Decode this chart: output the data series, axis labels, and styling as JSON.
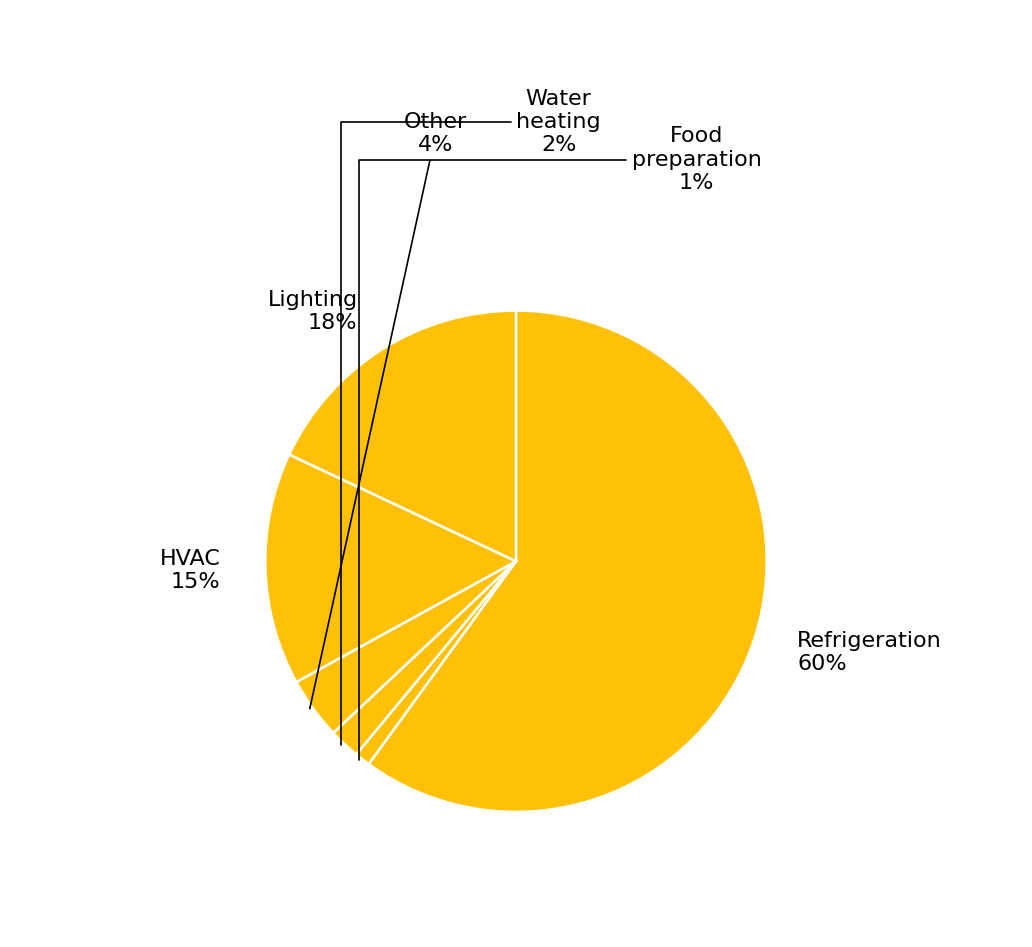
{
  "slices": [
    {
      "label": "Refrigeration\n60%",
      "value": 60
    },
    {
      "label": "Food\npreparation\n1%",
      "value": 1
    },
    {
      "label": "Water\nheating\n2%",
      "value": 2
    },
    {
      "label": "Other\n4%",
      "value": 4
    },
    {
      "label": "HVAC\n15%",
      "value": 15
    },
    {
      "label": "Lighting\n18%",
      "value": 18
    }
  ],
  "pie_color": "#FFC107",
  "wedge_linecolor": "white",
  "wedge_linewidth": 1.8,
  "background_color": "#ffffff",
  "label_fontsize": 16,
  "annotation_fontsize": 16
}
